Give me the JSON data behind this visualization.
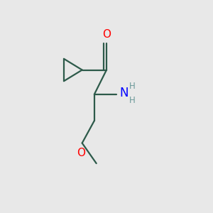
{
  "background_color": "#e8e8e8",
  "bond_color": "#2d5a4a",
  "O_color": "#ff0000",
  "N_color": "#0000ff",
  "H_color": "#6b9999",
  "line_width": 1.6,
  "font_size_atom": 11,
  "font_size_H": 8.5,
  "figsize": [
    3.0,
    3.0
  ],
  "dpi": 100,
  "xlim": [
    0,
    10
  ],
  "ylim": [
    0,
    10
  ]
}
